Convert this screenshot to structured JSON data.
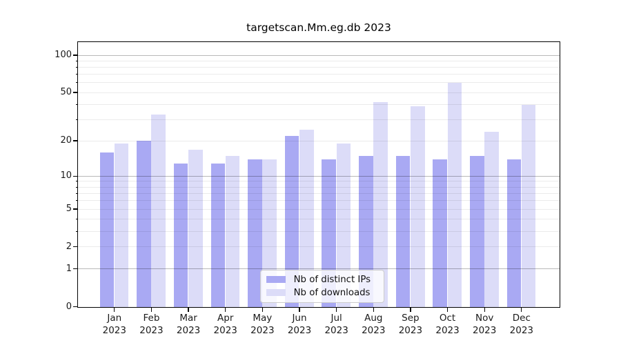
{
  "title": "targetscan.Mm.eg.db 2023",
  "y_axis": {
    "scale": "log10(value+1)",
    "tick_labels": [
      "100",
      "50",
      "20",
      "10",
      "5",
      "2",
      "1",
      "0"
    ],
    "tick_values": [
      100,
      50,
      20,
      10,
      5,
      2,
      1,
      0
    ],
    "major_grid_values": [
      1,
      10,
      100
    ],
    "minor_grid_values": [
      2,
      3,
      4,
      5,
      6,
      7,
      8,
      9,
      20,
      30,
      40,
      50,
      60,
      70,
      80,
      90
    ]
  },
  "x_axis": {
    "months": [
      "Jan",
      "Feb",
      "Mar",
      "Apr",
      "May",
      "Jun",
      "Jul",
      "Aug",
      "Sep",
      "Oct",
      "Nov",
      "Dec"
    ],
    "year": "2023"
  },
  "legend": {
    "items": [
      {
        "label": "Nb of distinct IPs"
      },
      {
        "label": "Nb of downloads"
      }
    ]
  },
  "colors": {
    "distinct_ips": "#a9a9f3",
    "downloads": "#dcdcf8",
    "grid_minor": "rgba(0,0,0,0.08)",
    "grid_major": "rgba(0,0,0,0.28)",
    "frame": "#000000",
    "legend_border": "#cccccc",
    "legend_background": "rgba(255,255,255,0.8)"
  },
  "chart_data": {
    "type": "bar",
    "title": "targetscan.Mm.eg.db 2023",
    "categories": [
      "Jan 2023",
      "Feb 2023",
      "Mar 2023",
      "Apr 2023",
      "May 2023",
      "Jun 2023",
      "Jul 2023",
      "Aug 2023",
      "Sep 2023",
      "Oct 2023",
      "Nov 2023",
      "Dec 2023"
    ],
    "series": [
      {
        "name": "Nb of distinct IPs",
        "color": "#a9a9f3",
        "values": [
          16,
          20,
          13,
          13,
          14,
          22,
          14,
          15,
          15,
          14,
          15,
          14
        ]
      },
      {
        "name": "Nb of downloads",
        "color": "#dcdcf8",
        "values": [
          19,
          33,
          17,
          15,
          14,
          25,
          19,
          42,
          39,
          60,
          24,
          40
        ]
      }
    ],
    "y_scale": "log10(value+1)",
    "y_ticks": [
      0,
      1,
      2,
      5,
      10,
      20,
      50,
      100
    ],
    "ylim": [
      0,
      115
    ],
    "grid": true,
    "grid_on_top_of_bars": true,
    "legend_position": "lower center"
  }
}
